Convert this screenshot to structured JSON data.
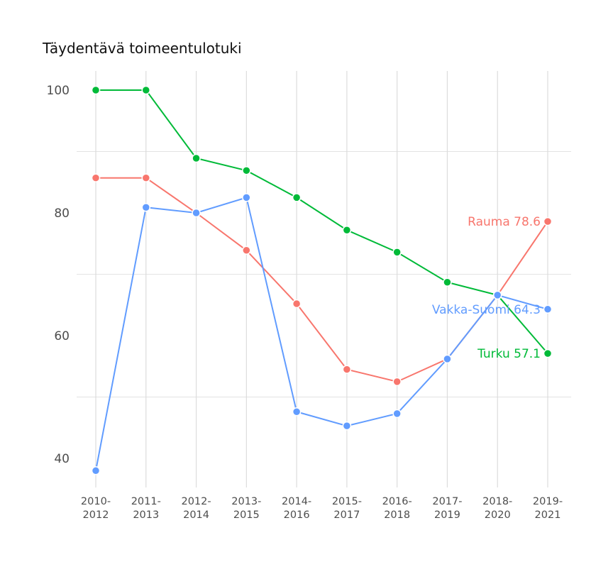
{
  "chart_data": {
    "type": "line",
    "title": "Täydentävä toimeentulotuki",
    "xlabel": "",
    "ylabel": "",
    "categories": [
      "2010-2012",
      "2011-2013",
      "2012-2014",
      "2013-2015",
      "2014-2016",
      "2015-2017",
      "2016-2018",
      "2017-2019",
      "2018-2020",
      "2019-2021"
    ],
    "category_lines": [
      [
        "2010-",
        "2012"
      ],
      [
        "2011-",
        "2013"
      ],
      [
        "2012-",
        "2014"
      ],
      [
        "2013-",
        "2015"
      ],
      [
        "2014-",
        "2016"
      ],
      [
        "2015-",
        "2017"
      ],
      [
        "2016-",
        "2018"
      ],
      [
        "2017-",
        "2019"
      ],
      [
        "2018-",
        "2020"
      ],
      [
        "2019-",
        "2021"
      ]
    ],
    "yticks": [
      40,
      60,
      80,
      100
    ],
    "ylim": [
      36.9,
      104.0
    ],
    "grid": true,
    "legend": "direct labels at last point",
    "series": [
      {
        "name": "Turku",
        "color": "#00ba38",
        "end_label": "Turku 57.1",
        "values": [
          100,
          100,
          88.9,
          86.9,
          82.5,
          77.2,
          73.6,
          68.7,
          66.6,
          57.1
        ]
      },
      {
        "name": "Rauma",
        "color": "#f8766d",
        "end_label": "Rauma 78.6",
        "values": [
          85.7,
          85.7,
          80.0,
          73.9,
          65.2,
          54.5,
          52.5,
          56.2,
          66.6,
          78.6
        ]
      },
      {
        "name": "Vakka-Suomi",
        "color": "#619cff",
        "end_label": "Vakka-Suomi 64.3",
        "values": [
          38.0,
          80.9,
          80.0,
          82.5,
          47.6,
          45.3,
          47.3,
          56.2,
          66.6,
          64.3
        ]
      }
    ]
  }
}
